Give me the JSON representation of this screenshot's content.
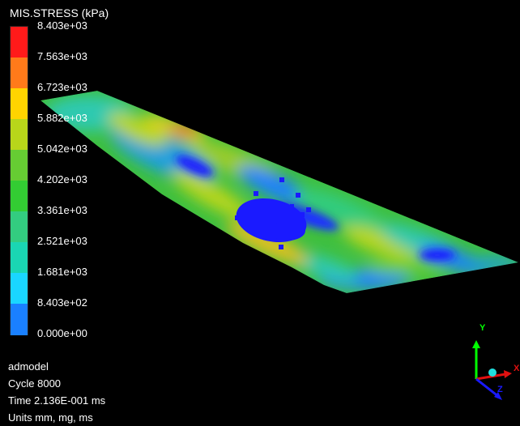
{
  "legend": {
    "title": "MIS.STRESS (kPa)",
    "levels": [
      {
        "label": "8.403e+03",
        "color": "#ff1a1a"
      },
      {
        "label": "7.563e+03",
        "color": "#ff7a1a"
      },
      {
        "label": "6.723e+03",
        "color": "#ffd400"
      },
      {
        "label": "5.882e+03",
        "color": "#b8d61a"
      },
      {
        "label": "5.042e+03",
        "color": "#66cc33"
      },
      {
        "label": "4.202e+03",
        "color": "#33cc33"
      },
      {
        "label": "3.361e+03",
        "color": "#33cc80"
      },
      {
        "label": "2.521e+03",
        "color": "#1ad6b3"
      },
      {
        "label": "1.681e+03",
        "color": "#1ad6ff"
      },
      {
        "label": "8.403e+02",
        "color": "#1a80ff"
      },
      {
        "label": "0.000e+00",
        "color": "#1a1aff"
      }
    ]
  },
  "info": {
    "model": "admodel",
    "cycle": "Cycle 8000",
    "time": "Time 2.136E-001 ms",
    "units": "Units mm, mg, ms"
  },
  "triad": {
    "x_label": "X",
    "y_label": "Y",
    "z_label": "Z",
    "x_color": "#e01010",
    "y_color": "#00ff00",
    "z_color": "#1a1aff"
  }
}
